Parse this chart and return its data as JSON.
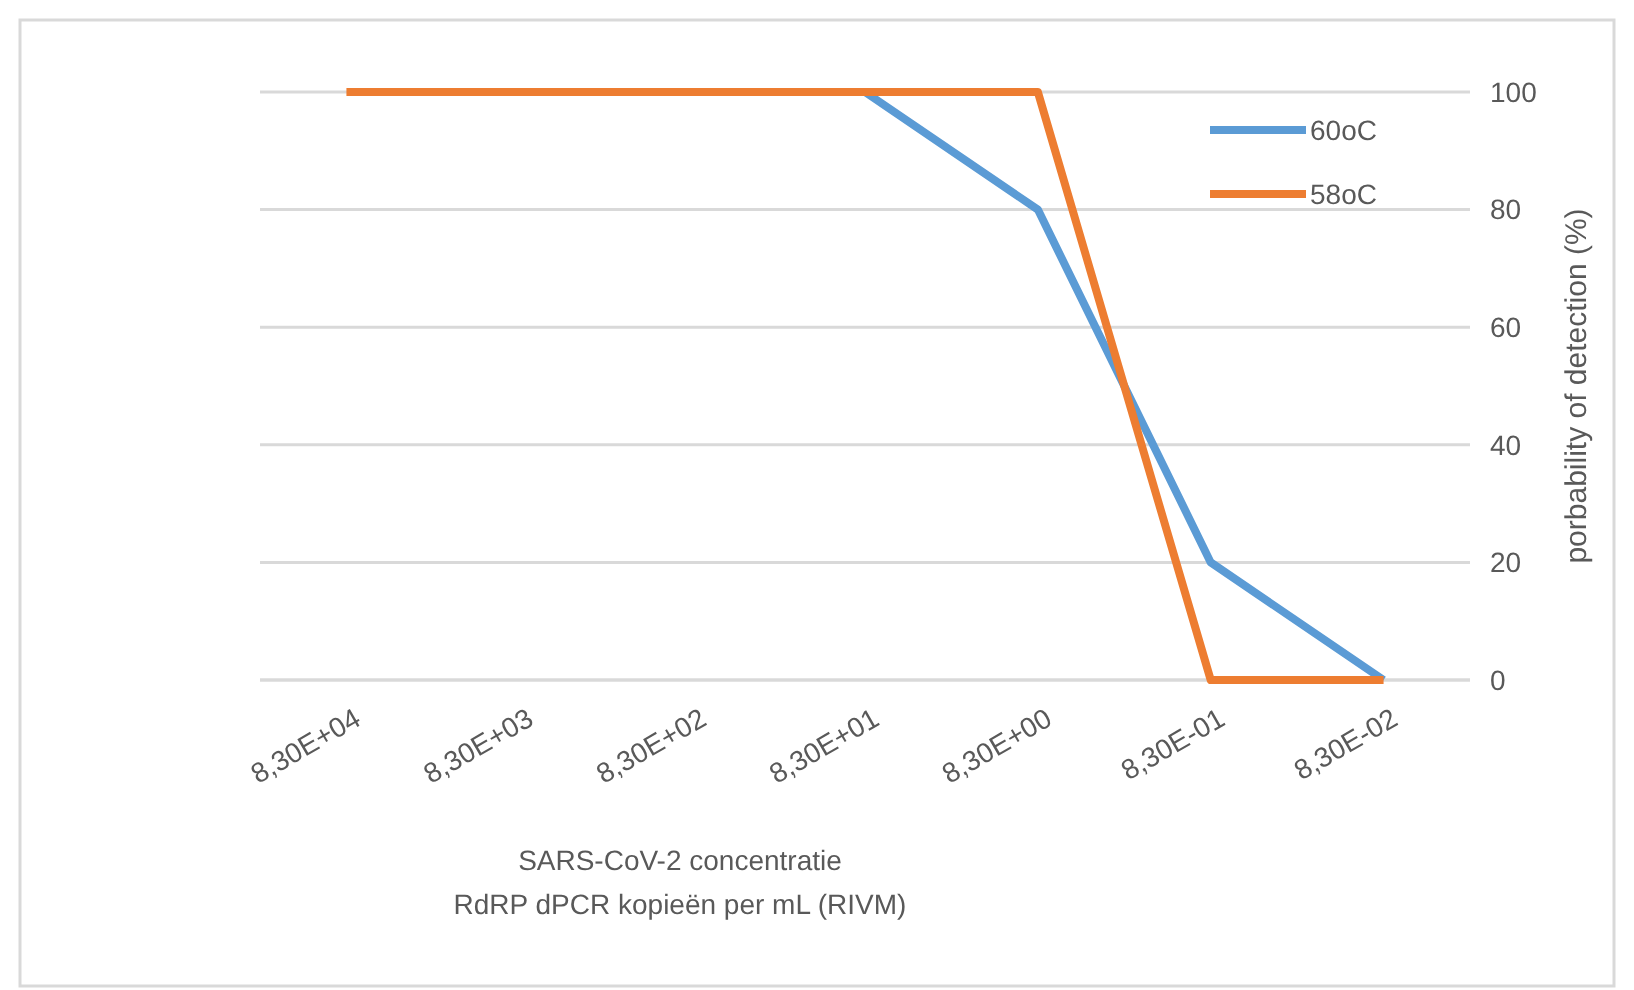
{
  "chart_data": {
    "type": "line",
    "xlabel": "SARS-CoV-2 concentratie\nRdRP dPCR kopieën per mL (RIVM)",
    "ylabel": "porbability of detection (%)",
    "categories": [
      "8,30E+04",
      "8,30E+03",
      "8,30E+02",
      "8,30E+01",
      "8,30E+00",
      "8,30E-01",
      "8,30E-02"
    ],
    "series": [
      {
        "name": "60oC",
        "color": "#5b9bd5",
        "values": [
          null,
          null,
          null,
          100,
          80,
          20,
          0
        ]
      },
      {
        "name": "58oC",
        "color": "#ed7d31",
        "values": [
          100,
          100,
          100,
          100,
          100,
          0,
          0
        ]
      }
    ],
    "ylim": [
      0,
      100
    ],
    "yticks": [
      0,
      20,
      40,
      60,
      80,
      100
    ],
    "grid": "y",
    "legend": "top right",
    "marker": "none",
    "line_style": "solid"
  }
}
